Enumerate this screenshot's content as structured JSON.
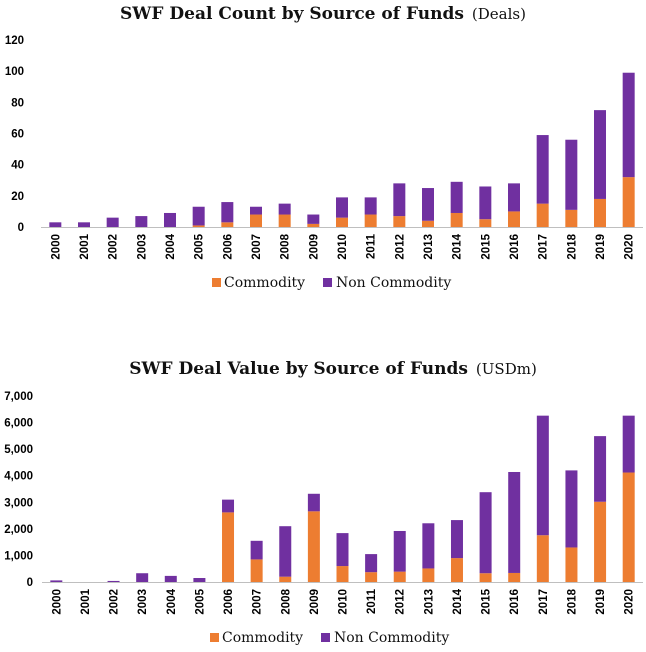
{
  "colors": {
    "commodity": "#ED7D31",
    "non_commodity": "#7030A0"
  },
  "chart_data": [
    {
      "type": "bar",
      "stacked": true,
      "title": "SWF Deal Count by Source of Funds",
      "subtitle": "(Deals)",
      "xlabel": "",
      "ylabel": "",
      "ylim": [
        0,
        120
      ],
      "yticks": [
        0,
        20,
        40,
        60,
        80,
        100,
        120
      ],
      "ytick_labels": [
        "0",
        "20",
        "40",
        "60",
        "80",
        "100",
        "120"
      ],
      "categories": [
        "2000",
        "2001",
        "2002",
        "2003",
        "2004",
        "2005",
        "2006",
        "2007",
        "2008",
        "2009",
        "2010",
        "2011",
        "2012",
        "2013",
        "2014",
        "2015",
        "2016",
        "2017",
        "2018",
        "2019",
        "2020"
      ],
      "series": [
        {
          "name": "Commodity",
          "values": [
            0,
            0,
            0,
            0,
            0,
            1,
            3,
            8,
            8,
            2,
            6,
            8,
            7,
            4,
            9,
            5,
            10,
            15,
            11,
            18,
            32
          ]
        },
        {
          "name": "Non Commodity",
          "values": [
            3,
            3,
            6,
            7,
            9,
            12,
            13,
            5,
            7,
            6,
            13,
            11,
            21,
            21,
            20,
            21,
            18,
            44,
            45,
            57,
            67
          ]
        }
      ],
      "legend": [
        "Commodity",
        "Non Commodity"
      ],
      "legend_position": "bottom"
    },
    {
      "type": "bar",
      "stacked": true,
      "title": "SWF Deal Value by Source of Funds",
      "subtitle": "(USDm)",
      "xlabel": "",
      "ylabel": "",
      "ylim": [
        0,
        7000
      ],
      "yticks": [
        0,
        1000,
        2000,
        3000,
        4000,
        5000,
        6000,
        7000
      ],
      "ytick_labels": [
        "0",
        "1,000",
        "2,000",
        "3,000",
        "4,000",
        "5,000",
        "6,000",
        "7,000"
      ],
      "categories": [
        "2000",
        "2001",
        "2002",
        "2003",
        "2004",
        "2005",
        "2006",
        "2007",
        "2008",
        "2009",
        "2010",
        "2011",
        "2012",
        "2013",
        "2014",
        "2015",
        "2016",
        "2017",
        "2018",
        "2019",
        "2020"
      ],
      "series": [
        {
          "name": "Commodity",
          "values": [
            0,
            0,
            0,
            0,
            0,
            0,
            2620,
            850,
            200,
            2660,
            600,
            370,
            390,
            510,
            900,
            330,
            340,
            1760,
            1300,
            3020,
            4120
          ]
        },
        {
          "name": "Non Commodity",
          "values": [
            60,
            0,
            40,
            330,
            230,
            150,
            480,
            700,
            1900,
            660,
            1240,
            680,
            1530,
            1700,
            1430,
            3050,
            3800,
            4500,
            2900,
            2470,
            2140
          ]
        }
      ],
      "legend": [
        "Commodity",
        "Non Commodity"
      ],
      "legend_position": "bottom"
    }
  ]
}
